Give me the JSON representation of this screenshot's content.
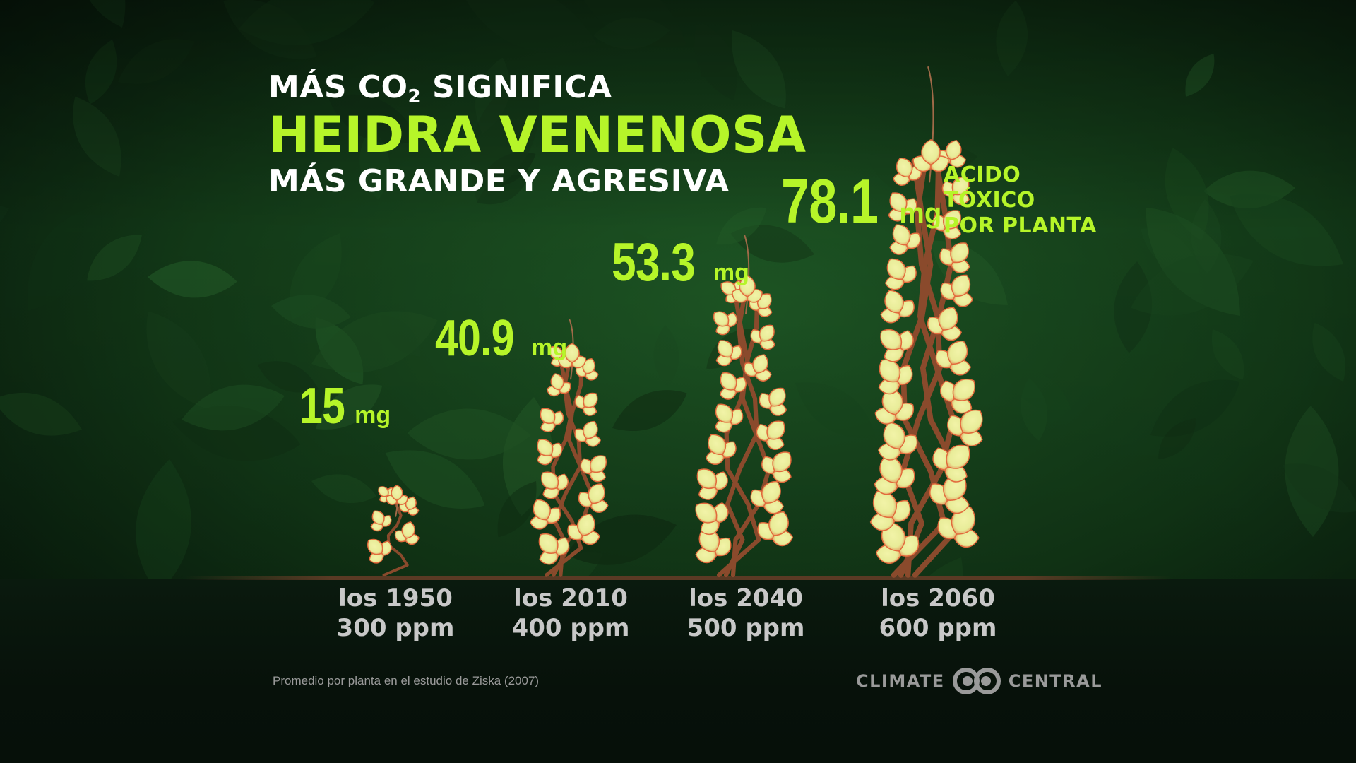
{
  "title": {
    "line1_prefix": "MÁS CO",
    "line1_subscript": "2",
    "line1_suffix": " SIGNIFICA",
    "line2": "HEIDRA VENENOSA",
    "line3": "MÁS GRANDE Y AGRESIVA"
  },
  "chart_data": {
    "type": "bar",
    "categories": [
      "los 1950",
      "los 2010",
      "los 2040",
      "los 2060"
    ],
    "co2_ppm_labels": [
      "300 ppm",
      "400 ppm",
      "500 ppm",
      "600 ppm"
    ],
    "series": [
      {
        "name": "ACIDO TÓXICO POR PLANTA",
        "values": [
          15,
          40.9,
          53.3,
          78.1
        ],
        "unit": "mg"
      }
    ],
    "value_labels": [
      "15",
      "40.9",
      "53.3",
      "78.1"
    ],
    "unit_label": "mg",
    "series_label_lines": [
      "ACIDO",
      "TÓXICO",
      "POR PLANTA"
    ],
    "mark_style": "plant height",
    "ylim": [
      0,
      80
    ],
    "grid": false
  },
  "footnote": "Promedio por planta en el estudio de Ziska (2007)",
  "brand": {
    "left": "CLIMATE",
    "right": "CENTRAL",
    "mark_icon": "climate-central-logo-icon"
  },
  "colors": {
    "accent": "#b6f529",
    "title": "#ffffff",
    "category_text": "#c8c8c8",
    "footnote_text": "#9a9a9a",
    "leaf": "#e8ec98",
    "leaf_edge": "#e26a3c",
    "stem": "#8a4a2c",
    "background": "#0c2a12"
  }
}
